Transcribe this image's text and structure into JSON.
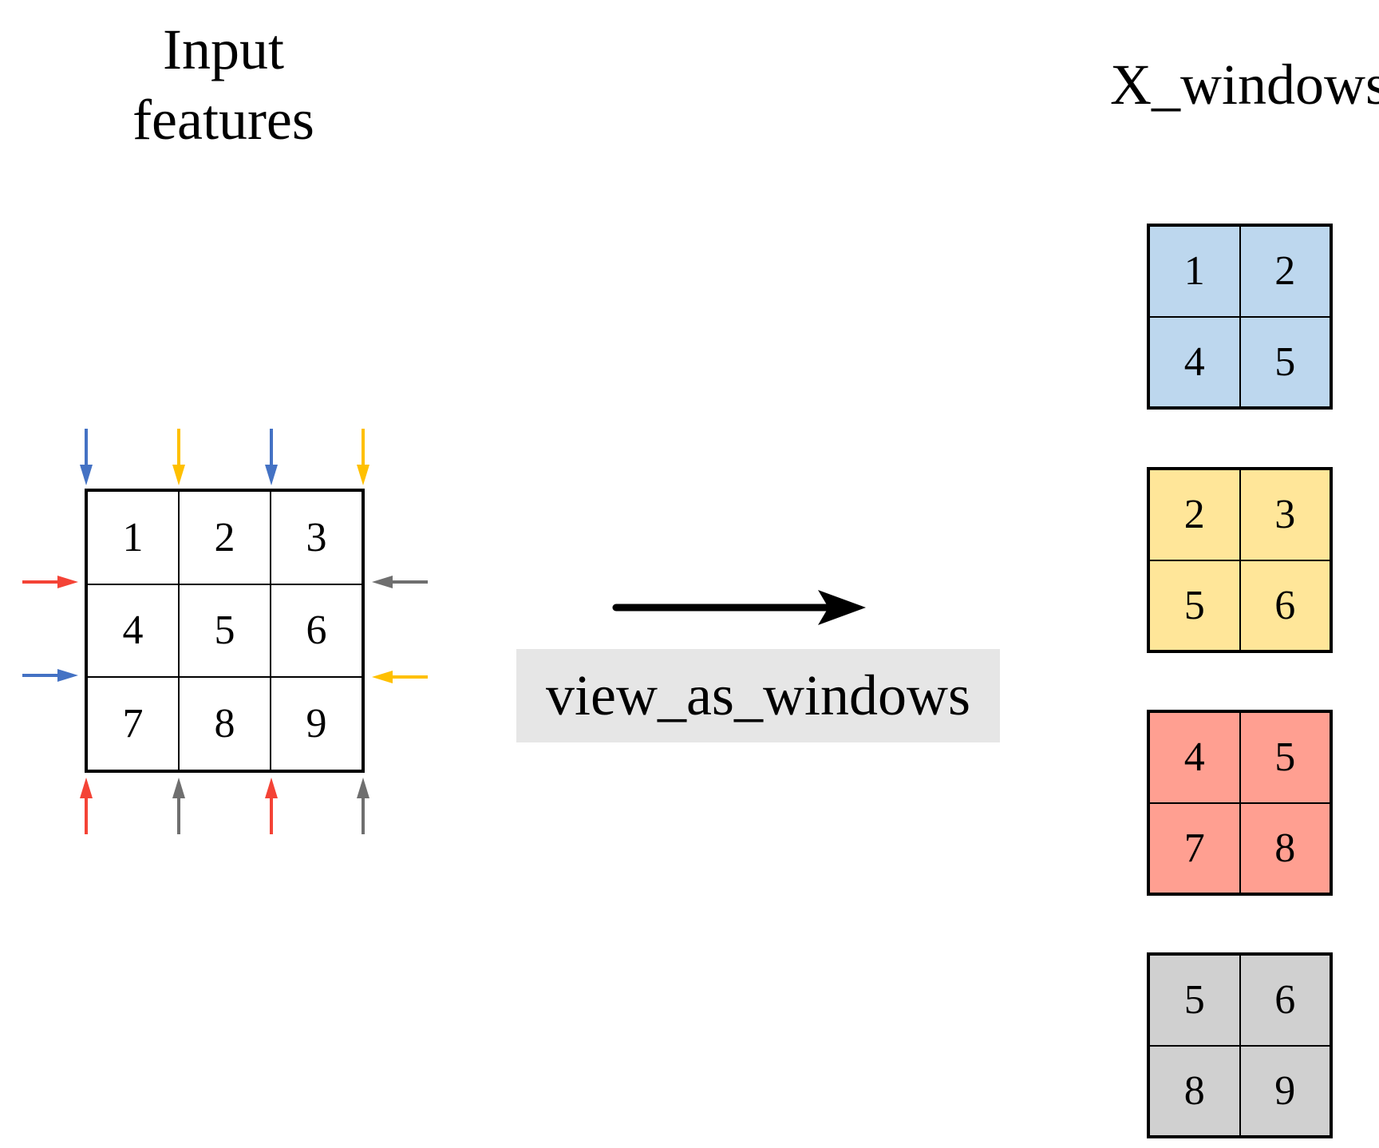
{
  "titles": {
    "input_line1": "Input",
    "input_line2": "features",
    "output": "X_windows"
  },
  "input_grid": {
    "cells": [
      "1",
      "2",
      "3",
      "4",
      "5",
      "6",
      "7",
      "8",
      "9"
    ]
  },
  "operation": {
    "label": "view_as_windows"
  },
  "windows": [
    {
      "color": "#bdd7ee",
      "cells": [
        "1",
        "2",
        "4",
        "5"
      ]
    },
    {
      "color": "#ffe699",
      "cells": [
        "2",
        "3",
        "5",
        "6"
      ]
    },
    {
      "color": "#ff9f91",
      "cells": [
        "4",
        "5",
        "7",
        "8"
      ]
    },
    {
      "color": "#d0d0d0",
      "cells": [
        "5",
        "6",
        "8",
        "9"
      ]
    }
  ],
  "arrow_colors": {
    "blue": "#4472c4",
    "yellow": "#ffc000",
    "red": "#f44336",
    "gray": "#6f6f6f"
  }
}
